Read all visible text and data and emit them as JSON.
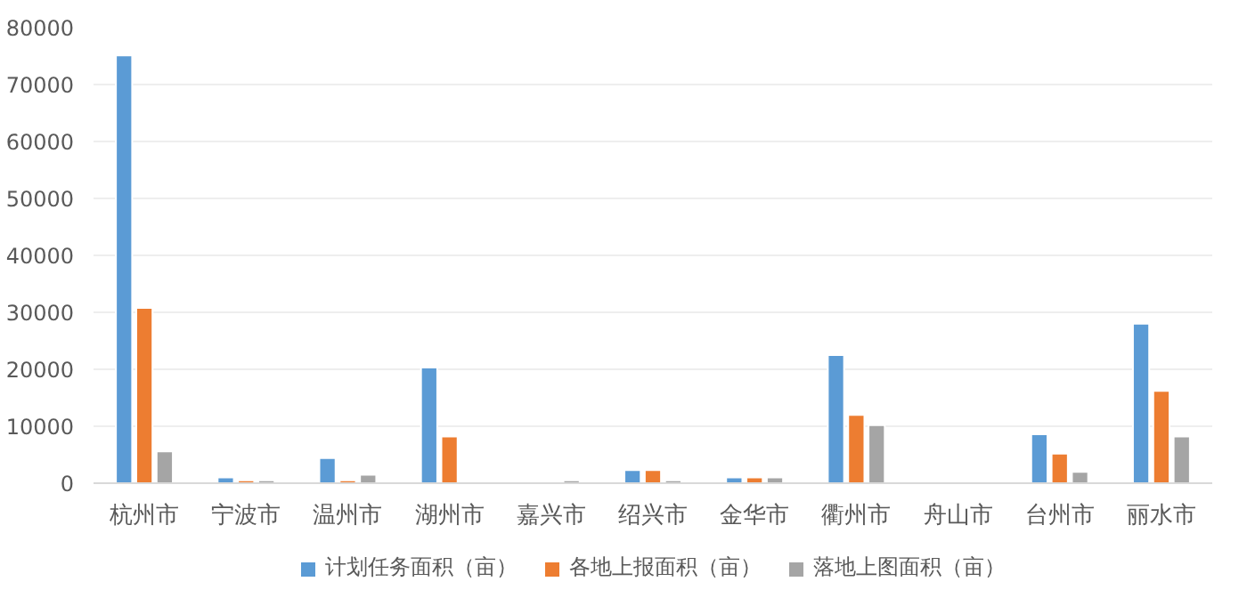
{
  "chart_data": {
    "type": "bar",
    "categories": [
      "杭州市",
      "宁波市",
      "温州市",
      "湖州市",
      "嘉兴市",
      "绍兴市",
      "金华市",
      "衢州市",
      "舟山市",
      "台州市",
      "丽水市"
    ],
    "series": [
      {
        "name": "计划任务面积（亩）",
        "color": "#5b9bd5",
        "values": [
          75100,
          1000,
          4400,
          20300,
          null,
          2300,
          1000,
          22500,
          null,
          8600,
          28000
        ]
      },
      {
        "name": "各地上报面积（亩）",
        "color": "#ed7d31",
        "values": [
          30800,
          500,
          500,
          8200,
          null,
          2300,
          1000,
          12000,
          null,
          5200,
          16200
        ]
      },
      {
        "name": "落地上图面积（亩）",
        "color": "#a5a5a5",
        "values": [
          5600,
          500,
          1500,
          null,
          500,
          500,
          1000,
          10200,
          null,
          2000,
          8200
        ]
      }
    ],
    "ylim": [
      0,
      80000
    ],
    "yticks": [
      0,
      10000,
      20000,
      30000,
      40000,
      50000,
      60000,
      70000,
      80000
    ],
    "grid": "y",
    "legend": "bottom"
  }
}
